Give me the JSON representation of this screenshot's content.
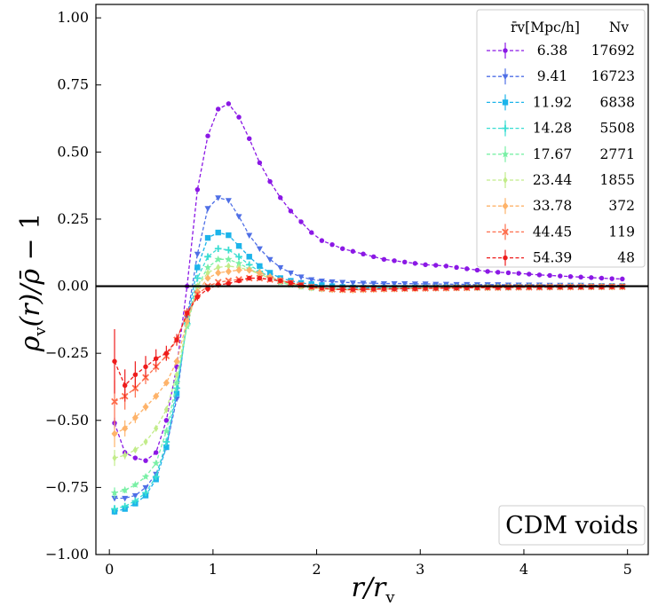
{
  "chart_data": {
    "type": "line",
    "title": "",
    "xlabel": "r/r_v",
    "ylabel": "ρ_v(r)/ρ̄ − 1",
    "xlim": [
      -0.13,
      5.2
    ],
    "ylim": [
      -1.0,
      1.05
    ],
    "xticks": [
      0,
      1,
      2,
      3,
      4,
      5
    ],
    "yticks": [
      -1.0,
      -0.75,
      -0.5,
      -0.25,
      0.0,
      0.25,
      0.5,
      0.75,
      1.0
    ],
    "xtick_labels": [
      "0",
      "1",
      "2",
      "3",
      "4",
      "5"
    ],
    "ytick_labels": [
      "−1.00",
      "−0.75",
      "−0.50",
      "−0.25",
      "0.00",
      "0.25",
      "0.50",
      "0.75",
      "1.00"
    ],
    "reference_line": 0.0,
    "annotation": "CDM voids",
    "legend": {
      "location": "top-right",
      "header_radius": "r̄v[Mpc/h]",
      "header_count": "Nv"
    },
    "x": [
      0.05,
      0.15,
      0.25,
      0.35,
      0.45,
      0.55,
      0.65,
      0.75,
      0.85,
      0.95,
      1.05,
      1.15,
      1.25,
      1.35,
      1.45,
      1.55,
      1.65,
      1.75,
      1.85,
      1.95,
      2.05,
      2.15,
      2.25,
      2.35,
      2.45,
      2.55,
      2.65,
      2.75,
      2.85,
      2.95,
      3.05,
      3.15,
      3.25,
      3.35,
      3.45,
      3.55,
      3.65,
      3.75,
      3.85,
      3.95,
      4.05,
      4.15,
      4.25,
      4.35,
      4.45,
      4.55,
      4.65,
      4.75,
      4.85,
      4.95
    ],
    "series": [
      {
        "name": "6.38",
        "radius": "6.38",
        "count": "17692",
        "color": "#8b18e5",
        "marker": "circle",
        "values": [
          -0.51,
          -0.62,
          -0.64,
          -0.65,
          -0.62,
          -0.5,
          -0.3,
          0.0,
          0.36,
          0.56,
          0.66,
          0.68,
          0.63,
          0.55,
          0.46,
          0.39,
          0.33,
          0.28,
          0.24,
          0.2,
          0.17,
          0.155,
          0.14,
          0.13,
          0.12,
          0.11,
          0.1,
          0.095,
          0.09,
          0.085,
          0.08,
          0.078,
          0.075,
          0.07,
          0.065,
          0.06,
          0.055,
          0.052,
          0.05,
          0.048,
          0.045,
          0.042,
          0.04,
          0.038,
          0.036,
          0.034,
          0.032,
          0.03,
          0.028,
          0.027
        ],
        "errors": [
          0.02,
          0.01,
          0.008,
          0.006,
          0.005,
          0.005,
          0.005,
          0.005,
          0.005,
          0.005,
          0.005,
          0.005,
          0.005,
          0.005,
          0.005,
          0.005,
          0.005,
          0.005,
          0.005,
          0.005,
          0.005,
          0.005,
          0.005,
          0.005,
          0.005,
          0.005,
          0.005,
          0.005,
          0.005,
          0.005,
          0.005,
          0.005,
          0.005,
          0.005,
          0.005,
          0.005,
          0.005,
          0.005,
          0.005,
          0.005,
          0.005,
          0.005,
          0.005,
          0.005,
          0.005,
          0.005,
          0.005,
          0.005,
          0.005,
          0.005
        ]
      },
      {
        "name": "9.41",
        "radius": "9.41",
        "count": "16723",
        "color": "#4f6fe6",
        "marker": "triangle-down",
        "values": [
          -0.79,
          -0.79,
          -0.78,
          -0.75,
          -0.7,
          -0.6,
          -0.42,
          -0.12,
          0.12,
          0.29,
          0.33,
          0.32,
          0.26,
          0.19,
          0.14,
          0.1,
          0.07,
          0.05,
          0.035,
          0.025,
          0.02,
          0.017,
          0.015,
          0.013,
          0.012,
          0.011,
          0.01,
          0.01,
          0.01,
          0.009,
          0.009,
          0.008,
          0.008,
          0.007,
          0.007,
          0.006,
          0.006,
          0.006,
          0.005,
          0.005,
          0.005,
          0.005,
          0.004,
          0.004,
          0.004,
          0.004,
          0.003,
          0.003,
          0.003,
          0.003
        ],
        "errors": [
          0.01,
          0.006,
          0.005,
          0.005,
          0.005,
          0.005,
          0.005,
          0.005,
          0.005,
          0.005,
          0.005,
          0.005,
          0.005,
          0.005,
          0.005,
          0.005,
          0.005,
          0.005,
          0.005,
          0.005,
          0.005,
          0.005,
          0.005,
          0.005,
          0.005,
          0.005,
          0.005,
          0.005,
          0.005,
          0.005,
          0.005,
          0.005,
          0.005,
          0.005,
          0.005,
          0.005,
          0.005,
          0.005,
          0.005,
          0.005,
          0.005,
          0.005,
          0.005,
          0.005,
          0.005,
          0.005,
          0.005,
          0.005,
          0.005,
          0.005
        ]
      },
      {
        "name": "11.92",
        "radius": "11.92",
        "count": "6838",
        "color": "#1cb4ea",
        "marker": "square",
        "values": [
          -0.84,
          -0.83,
          -0.81,
          -0.78,
          -0.72,
          -0.6,
          -0.4,
          -0.13,
          0.07,
          0.18,
          0.2,
          0.19,
          0.15,
          0.11,
          0.075,
          0.05,
          0.03,
          0.02,
          0.012,
          0.008,
          0.004,
          0.0,
          -0.003,
          -0.005,
          -0.006,
          -0.006,
          -0.006,
          -0.006,
          -0.006,
          -0.005,
          -0.005,
          -0.005,
          -0.004,
          -0.004,
          -0.004,
          -0.003,
          -0.003,
          -0.003,
          -0.003,
          -0.002,
          -0.002,
          -0.002,
          -0.002,
          -0.002,
          -0.001,
          -0.001,
          -0.001,
          -0.001,
          -0.001,
          -0.001
        ],
        "errors": [
          0.012,
          0.008,
          0.006,
          0.005,
          0.005,
          0.005,
          0.005,
          0.005,
          0.005,
          0.005,
          0.005,
          0.005,
          0.005,
          0.005,
          0.005,
          0.005,
          0.005,
          0.005,
          0.005,
          0.005,
          0.005,
          0.005,
          0.005,
          0.005,
          0.005,
          0.005,
          0.005,
          0.005,
          0.005,
          0.005,
          0.005,
          0.005,
          0.005,
          0.005,
          0.005,
          0.005,
          0.005,
          0.005,
          0.005,
          0.005,
          0.005,
          0.005,
          0.005,
          0.005,
          0.005,
          0.005,
          0.005,
          0.005,
          0.005,
          0.005
        ]
      },
      {
        "name": "14.28",
        "radius": "14.28",
        "count": "5508",
        "color": "#38ddd2",
        "marker": "plus",
        "values": [
          -0.83,
          -0.82,
          -0.8,
          -0.77,
          -0.71,
          -0.58,
          -0.38,
          -0.14,
          0.03,
          0.11,
          0.14,
          0.135,
          0.11,
          0.08,
          0.055,
          0.035,
          0.02,
          0.01,
          0.002,
          -0.003,
          -0.007,
          -0.009,
          -0.01,
          -0.01,
          -0.01,
          -0.009,
          -0.009,
          -0.008,
          -0.008,
          -0.007,
          -0.007,
          -0.006,
          -0.006,
          -0.005,
          -0.005,
          -0.005,
          -0.004,
          -0.004,
          -0.004,
          -0.003,
          -0.003,
          -0.003,
          -0.003,
          -0.002,
          -0.002,
          -0.002,
          -0.002,
          -0.002,
          -0.001,
          -0.001
        ],
        "errors": [
          0.015,
          0.01,
          0.007,
          0.006,
          0.005,
          0.005,
          0.005,
          0.005,
          0.005,
          0.005,
          0.005,
          0.005,
          0.005,
          0.005,
          0.005,
          0.005,
          0.005,
          0.005,
          0.005,
          0.005,
          0.005,
          0.005,
          0.005,
          0.005,
          0.005,
          0.005,
          0.005,
          0.005,
          0.005,
          0.005,
          0.005,
          0.005,
          0.005,
          0.005,
          0.005,
          0.005,
          0.005,
          0.005,
          0.005,
          0.005,
          0.005,
          0.005,
          0.005,
          0.005,
          0.005,
          0.005,
          0.005,
          0.005,
          0.005,
          0.005
        ]
      },
      {
        "name": "17.67",
        "radius": "17.67",
        "count": "2771",
        "color": "#7af0a6",
        "marker": "star",
        "values": [
          -0.77,
          -0.76,
          -0.74,
          -0.71,
          -0.66,
          -0.54,
          -0.36,
          -0.15,
          0.0,
          0.07,
          0.1,
          0.1,
          0.085,
          0.065,
          0.045,
          0.03,
          0.015,
          0.005,
          -0.002,
          -0.007,
          -0.01,
          -0.012,
          -0.013,
          -0.013,
          -0.012,
          -0.011,
          -0.01,
          -0.009,
          -0.008,
          -0.008,
          -0.007,
          -0.007,
          -0.006,
          -0.006,
          -0.005,
          -0.005,
          -0.005,
          -0.004,
          -0.004,
          -0.004,
          -0.003,
          -0.003,
          -0.003,
          -0.003,
          -0.002,
          -0.002,
          -0.002,
          -0.002,
          -0.002,
          -0.001
        ],
        "errors": [
          0.02,
          0.012,
          0.009,
          0.007,
          0.006,
          0.005,
          0.005,
          0.005,
          0.005,
          0.005,
          0.005,
          0.005,
          0.005,
          0.005,
          0.005,
          0.005,
          0.005,
          0.005,
          0.005,
          0.005,
          0.005,
          0.005,
          0.005,
          0.005,
          0.005,
          0.005,
          0.005,
          0.005,
          0.005,
          0.005,
          0.005,
          0.005,
          0.005,
          0.005,
          0.005,
          0.005,
          0.005,
          0.005,
          0.005,
          0.005,
          0.005,
          0.005,
          0.005,
          0.005,
          0.005,
          0.005,
          0.005,
          0.005,
          0.005,
          0.005
        ]
      },
      {
        "name": "23.44",
        "radius": "23.44",
        "count": "1855",
        "color": "#c2ec8a",
        "marker": "diamond-thin",
        "values": [
          -0.64,
          -0.63,
          -0.61,
          -0.58,
          -0.53,
          -0.46,
          -0.33,
          -0.14,
          0.0,
          0.05,
          0.07,
          0.075,
          0.07,
          0.06,
          0.045,
          0.03,
          0.018,
          0.008,
          0.0,
          -0.006,
          -0.01,
          -0.012,
          -0.013,
          -0.013,
          -0.012,
          -0.011,
          -0.01,
          -0.009,
          -0.008,
          -0.008,
          -0.007,
          -0.007,
          -0.006,
          -0.006,
          -0.005,
          -0.005,
          -0.005,
          -0.004,
          -0.004,
          -0.004,
          -0.003,
          -0.003,
          -0.003,
          -0.003,
          -0.002,
          -0.002,
          -0.002,
          -0.002,
          -0.002,
          -0.001
        ],
        "errors": [
          0.03,
          0.015,
          0.01,
          0.008,
          0.007,
          0.006,
          0.006,
          0.005,
          0.005,
          0.005,
          0.005,
          0.005,
          0.005,
          0.005,
          0.005,
          0.005,
          0.005,
          0.005,
          0.005,
          0.005,
          0.005,
          0.005,
          0.005,
          0.005,
          0.005,
          0.005,
          0.005,
          0.005,
          0.005,
          0.005,
          0.005,
          0.005,
          0.005,
          0.005,
          0.005,
          0.005,
          0.005,
          0.005,
          0.005,
          0.005,
          0.005,
          0.005,
          0.005,
          0.005,
          0.005,
          0.005,
          0.005,
          0.005,
          0.005,
          0.005
        ]
      },
      {
        "name": "33.78",
        "radius": "33.78",
        "count": "372",
        "color": "#feb36a",
        "marker": "diamond",
        "values": [
          -0.55,
          -0.53,
          -0.49,
          -0.45,
          -0.41,
          -0.36,
          -0.28,
          -0.13,
          -0.02,
          0.03,
          0.05,
          0.055,
          0.06,
          0.06,
          0.05,
          0.035,
          0.022,
          0.012,
          0.003,
          -0.004,
          -0.009,
          -0.012,
          -0.013,
          -0.014,
          -0.013,
          -0.012,
          -0.011,
          -0.01,
          -0.009,
          -0.009,
          -0.008,
          -0.007,
          -0.007,
          -0.006,
          -0.006,
          -0.005,
          -0.005,
          -0.005,
          -0.004,
          -0.004,
          -0.004,
          -0.003,
          -0.003,
          -0.003,
          -0.003,
          -0.002,
          -0.002,
          -0.002,
          -0.002,
          -0.002
        ],
        "errors": [
          0.05,
          0.03,
          0.02,
          0.015,
          0.012,
          0.01,
          0.008,
          0.007,
          0.006,
          0.006,
          0.005,
          0.005,
          0.005,
          0.005,
          0.005,
          0.005,
          0.005,
          0.005,
          0.005,
          0.005,
          0.005,
          0.005,
          0.005,
          0.005,
          0.005,
          0.005,
          0.005,
          0.005,
          0.005,
          0.005,
          0.005,
          0.005,
          0.005,
          0.005,
          0.005,
          0.005,
          0.005,
          0.005,
          0.005,
          0.005,
          0.005,
          0.005,
          0.005,
          0.005,
          0.005,
          0.005,
          0.005,
          0.005,
          0.005,
          0.005
        ]
      },
      {
        "name": "44.45",
        "radius": "44.45",
        "count": "119",
        "color": "#fe6e4d",
        "marker": "x",
        "values": [
          -0.43,
          -0.41,
          -0.38,
          -0.34,
          -0.3,
          -0.26,
          -0.2,
          -0.1,
          -0.03,
          0.0,
          0.015,
          0.02,
          0.025,
          0.03,
          0.03,
          0.025,
          0.02,
          0.012,
          0.004,
          -0.003,
          -0.008,
          -0.011,
          -0.013,
          -0.013,
          -0.012,
          -0.011,
          -0.01,
          -0.01,
          -0.009,
          -0.008,
          -0.008,
          -0.007,
          -0.007,
          -0.006,
          -0.006,
          -0.005,
          -0.005,
          -0.005,
          -0.004,
          -0.004,
          -0.004,
          -0.004,
          -0.003,
          -0.003,
          -0.003,
          -0.003,
          -0.002,
          -0.002,
          -0.002,
          -0.002
        ],
        "errors": [
          0.08,
          0.05,
          0.035,
          0.025,
          0.02,
          0.015,
          0.012,
          0.01,
          0.008,
          0.007,
          0.006,
          0.006,
          0.005,
          0.005,
          0.005,
          0.005,
          0.005,
          0.005,
          0.005,
          0.005,
          0.005,
          0.005,
          0.005,
          0.005,
          0.005,
          0.005,
          0.005,
          0.005,
          0.005,
          0.005,
          0.005,
          0.005,
          0.005,
          0.005,
          0.005,
          0.005,
          0.005,
          0.005,
          0.005,
          0.005,
          0.005,
          0.005,
          0.005,
          0.005,
          0.005,
          0.005,
          0.005,
          0.005,
          0.005,
          0.005
        ]
      },
      {
        "name": "54.39",
        "radius": "54.39",
        "count": "48",
        "color": "#ee1c1c",
        "marker": "circle",
        "values": [
          -0.28,
          -0.37,
          -0.33,
          -0.3,
          -0.27,
          -0.25,
          -0.2,
          -0.1,
          -0.04,
          -0.01,
          0.005,
          0.01,
          0.02,
          0.03,
          0.03,
          0.025,
          0.02,
          0.013,
          0.005,
          -0.002,
          -0.007,
          -0.01,
          -0.012,
          -0.012,
          -0.011,
          -0.011,
          -0.01,
          -0.01,
          -0.009,
          -0.009,
          -0.008,
          -0.008,
          -0.007,
          -0.007,
          -0.006,
          -0.006,
          -0.005,
          -0.005,
          -0.005,
          -0.004,
          -0.004,
          -0.004,
          -0.004,
          -0.003,
          -0.003,
          -0.003,
          -0.003,
          -0.003,
          -0.002,
          -0.002
        ],
        "errors": [
          0.12,
          0.06,
          0.05,
          0.04,
          0.035,
          0.028,
          0.022,
          0.018,
          0.014,
          0.012,
          0.01,
          0.009,
          0.008,
          0.007,
          0.007,
          0.006,
          0.006,
          0.006,
          0.005,
          0.005,
          0.005,
          0.005,
          0.005,
          0.005,
          0.005,
          0.005,
          0.005,
          0.005,
          0.005,
          0.005,
          0.005,
          0.005,
          0.005,
          0.005,
          0.005,
          0.005,
          0.005,
          0.005,
          0.005,
          0.005,
          0.005,
          0.005,
          0.005,
          0.005,
          0.005,
          0.005,
          0.005,
          0.005,
          0.005,
          0.005
        ]
      }
    ]
  }
}
